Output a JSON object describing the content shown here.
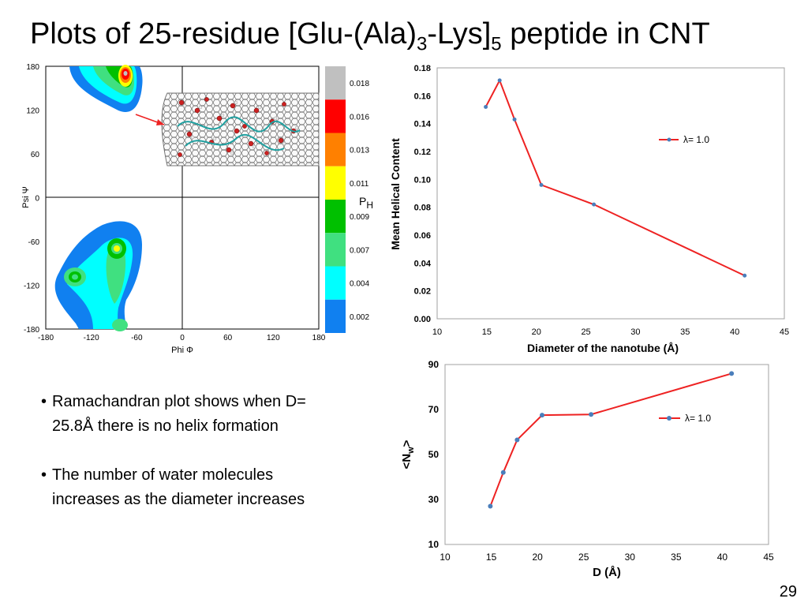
{
  "slide": {
    "title_prefix": "Plots of 25-residue [Glu-(Ala)",
    "title_sub1": "3",
    "title_mid": "-Lys]",
    "title_sub2": "5",
    "title_suffix": "  peptide in CNT",
    "page_number": "29"
  },
  "bullets": [
    {
      "text": "Ramachandran plot shows when D= 25.8Å there is no helix formation"
    },
    {
      "text": "The number of water molecules increases as the diameter increases"
    }
  ],
  "ramachandran": {
    "xlabel": "Phi Φ",
    "ylabel": "Psi Ψ",
    "x_ticks": [
      "-180",
      "-120",
      "-60",
      "0",
      "60",
      "120",
      "180"
    ],
    "y_ticks": [
      "180",
      "120",
      "60",
      "0",
      "-60",
      "-120",
      "-180"
    ],
    "colorbar_label": "P",
    "colorbar_sub": "H",
    "colorbar": [
      {
        "label": "0.018",
        "color": "#c0c0c0"
      },
      {
        "label": "0.016",
        "color": "#ff0000"
      },
      {
        "label": "0.013",
        "color": "#ff8000"
      },
      {
        "label": "0.011",
        "color": "#ffff00"
      },
      {
        "label": "0.009",
        "color": "#00c000"
      },
      {
        "label": "0.007",
        "color": "#40e080"
      },
      {
        "label": "0.004",
        "color": "#00ffff"
      },
      {
        "label": "0.002",
        "color": "#1080f0"
      }
    ]
  },
  "chart_data": [
    {
      "type": "line",
      "xlabel": "Diameter of the nanotube (Å)",
      "ylabel": "Mean Helical Content",
      "xlim": [
        10,
        45
      ],
      "ylim": [
        0,
        0.18
      ],
      "x_ticks": [
        "10",
        "15",
        "20",
        "25",
        "30",
        "35",
        "40",
        "45"
      ],
      "y_ticks": [
        "0.00",
        "0.02",
        "0.04",
        "0.06",
        "0.08",
        "0.10",
        "0.12",
        "0.14",
        "0.16",
        "0.18"
      ],
      "legend_position": "top-right",
      "series": [
        {
          "name": "λ= 1.0",
          "color": "#ee2222",
          "x": [
            14.9,
            16.3,
            17.8,
            20.5,
            25.8,
            41.0
          ],
          "y": [
            0.152,
            0.171,
            0.143,
            0.096,
            0.082,
            0.031
          ]
        }
      ]
    },
    {
      "type": "line",
      "xlabel": "D (Å)",
      "ylabel": "<N",
      "ylabel_sub": "w",
      "ylabel_end": ">",
      "xlim": [
        10,
        45
      ],
      "ylim": [
        10,
        90
      ],
      "x_ticks": [
        "10",
        "15",
        "20",
        "25",
        "30",
        "35",
        "40",
        "45"
      ],
      "y_ticks": [
        "10",
        "30",
        "50",
        "70",
        "90"
      ],
      "legend_position": "top-right",
      "series": [
        {
          "name": "λ= 1.0",
          "color": "#ee2222",
          "x": [
            14.9,
            16.3,
            17.8,
            20.5,
            25.8,
            41.0
          ],
          "y": [
            27,
            42,
            56.5,
            67.5,
            67.8,
            86
          ]
        }
      ]
    }
  ]
}
